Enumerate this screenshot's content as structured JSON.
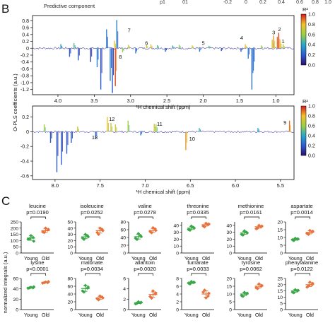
{
  "panel_labels": {
    "B": "B",
    "C": "C"
  },
  "header": {
    "component": "Predictive component",
    "cut_labels": [
      "p1",
      "01",
      "-0.2",
      "0",
      "0.2",
      "0.4",
      "0.6",
      "0.8",
      "1.0"
    ]
  },
  "colors": {
    "young": "#3aa647",
    "old": "#e8703a",
    "axis": "#000000"
  },
  "colorbar": {
    "title": "R²",
    "ticks": [
      "1.0",
      "0.8",
      "0.6",
      "0.4",
      "0.2",
      "0.0"
    ]
  },
  "chart_data": [
    {
      "type": "line",
      "name": "opls-aliphatic",
      "xlabel": "¹H chemical shift (ppm)",
      "ylabel": "O-PLS coefficients (a.u.)",
      "x_ticks": [
        "4.0",
        "3.5",
        "3.0",
        "2.5",
        "2.0",
        "1.5",
        "1.0"
      ],
      "y_ticks": [
        "0.8",
        "0.6",
        "0.4",
        "0.2",
        "0",
        "-0.2",
        "-0.4",
        "-0.6",
        "-0.8",
        "-1.0",
        "-1.2"
      ],
      "xlim": [
        4.35,
        0.75
      ],
      "ylim": [
        -1.35,
        0.95
      ],
      "x_reversed": true,
      "peaks": [
        {
          "x": 3.96,
          "y": 0.12,
          "r2": 0.4
        },
        {
          "x": 3.84,
          "y": -0.25,
          "r2": 0.2
        },
        {
          "x": 3.78,
          "y": 0.15,
          "r2": 0.5
        },
        {
          "x": 3.72,
          "y": -0.35,
          "r2": 0.2
        },
        {
          "x": 3.55,
          "y": -0.4,
          "r2": 0.15
        },
        {
          "x": 3.46,
          "y": -0.55,
          "r2": 0.3
        },
        {
          "x": 3.41,
          "y": -1.2,
          "r2": 0.2
        },
        {
          "x": 3.33,
          "y": 0.55,
          "r2": 0.3
        },
        {
          "x": 3.28,
          "y": -0.95,
          "r2": 0.3
        },
        {
          "x": 3.25,
          "y": -1.3,
          "r2": 0.2
        },
        {
          "x": 3.22,
          "y": 0.22,
          "r2": 0.8
        },
        {
          "x": 3.21,
          "y": -1.1,
          "r2": 0.95
        },
        {
          "x": 3.19,
          "y": 0.82,
          "r2": 0.3
        },
        {
          "x": 3.11,
          "y": -0.12,
          "r2": 0.6
        },
        {
          "x": 3.03,
          "y": 0.1,
          "r2": 0.75
        },
        {
          "x": 2.93,
          "y": -0.15,
          "r2": 0.3
        },
        {
          "x": 2.78,
          "y": 0.1,
          "r2": 0.7
        },
        {
          "x": 2.72,
          "y": 0.12,
          "r2": 0.8
        },
        {
          "x": 2.63,
          "y": 0.09,
          "r2": 0.5
        },
        {
          "x": 2.52,
          "y": -0.1,
          "r2": 0.2
        },
        {
          "x": 2.42,
          "y": 0.08,
          "r2": 0.45
        },
        {
          "x": 2.33,
          "y": 0.1,
          "r2": 0.6
        },
        {
          "x": 2.15,
          "y": 0.08,
          "r2": 0.75
        },
        {
          "x": 2.05,
          "y": -0.1,
          "r2": 0.3
        },
        {
          "x": 1.92,
          "y": 0.07,
          "r2": 0.5
        },
        {
          "x": 1.75,
          "y": -0.08,
          "r2": 0.2
        },
        {
          "x": 1.48,
          "y": -0.1,
          "r2": 0.2
        },
        {
          "x": 1.42,
          "y": 0.12,
          "r2": 0.8
        },
        {
          "x": 1.38,
          "y": -0.3,
          "r2": 0.3
        },
        {
          "x": 1.33,
          "y": -1.2,
          "r2": 0.25
        },
        {
          "x": 1.31,
          "y": -0.65,
          "r2": 0.3
        },
        {
          "x": 1.2,
          "y": 0.08,
          "r2": 0.6
        },
        {
          "x": 1.05,
          "y": 0.25,
          "r2": 0.7
        },
        {
          "x": 1.03,
          "y": 0.37,
          "r2": 0.85
        },
        {
          "x": 0.98,
          "y": 0.33,
          "r2": 0.9
        },
        {
          "x": 0.96,
          "y": 0.45,
          "r2": 0.95
        },
        {
          "x": 0.94,
          "y": 0.22,
          "r2": 0.8
        },
        {
          "x": 0.9,
          "y": 0.12,
          "r2": 0.7
        }
      ],
      "annotations": [
        {
          "text": "1",
          "x": 0.9,
          "y": 0.15
        },
        {
          "text": "2",
          "x": 0.95,
          "y": 0.5
        },
        {
          "text": "3",
          "x": 1.03,
          "y": 0.41
        },
        {
          "text": "4",
          "x": 1.47,
          "y": 0.25
        },
        {
          "text": "5",
          "x": 2.0,
          "y": 0.1
        },
        {
          "text": "6",
          "x": 2.78,
          "y": 0.1
        },
        {
          "text": "7",
          "x": 3.02,
          "y": 0.47
        },
        {
          "text": "8",
          "x": 3.14,
          "y": -0.3
        }
      ]
    },
    {
      "type": "line",
      "name": "opls-aromatic",
      "xlabel": "¹H chemical shift (ppm)",
      "ylabel": "",
      "x_ticks": [
        "8.0",
        "7.5",
        "7.0",
        "6.5",
        "6.0",
        "5.5"
      ],
      "y_ticks": [
        "0.2",
        "0",
        "-0.2",
        "-0.4",
        "-0.6"
      ],
      "xlim": [
        8.25,
        5.35
      ],
      "ylim": [
        -0.65,
        0.35
      ],
      "x_reversed": true,
      "peaks": [
        {
          "x": 8.12,
          "y": 0.1,
          "r2": 0.6
        },
        {
          "x": 8.05,
          "y": -0.15,
          "r2": 0.2
        },
        {
          "x": 7.98,
          "y": -0.55,
          "r2": 0.2
        },
        {
          "x": 7.93,
          "y": -0.45,
          "r2": 0.2
        },
        {
          "x": 7.87,
          "y": -0.3,
          "r2": 0.2
        },
        {
          "x": 7.82,
          "y": -0.15,
          "r2": 0.2
        },
        {
          "x": 7.75,
          "y": 0.07,
          "r2": 0.7
        },
        {
          "x": 7.55,
          "y": -0.1,
          "r2": 0.25
        },
        {
          "x": 7.42,
          "y": 0.2,
          "r2": 0.8
        },
        {
          "x": 7.38,
          "y": 0.12,
          "r2": 0.7
        },
        {
          "x": 7.33,
          "y": 0.1,
          "r2": 0.75
        },
        {
          "x": 7.19,
          "y": 0.15,
          "r2": 0.6
        },
        {
          "x": 7.05,
          "y": -0.05,
          "r2": 0.3
        },
        {
          "x": 6.9,
          "y": 0.11,
          "r2": 0.75
        },
        {
          "x": 6.88,
          "y": 0.1,
          "r2": 0.6
        },
        {
          "x": 6.55,
          "y": -0.25,
          "r2": 0.85
        },
        {
          "x": 6.4,
          "y": 0.05,
          "r2": 0.45
        },
        {
          "x": 5.75,
          "y": 0.05,
          "r2": 0.4
        },
        {
          "x": 5.4,
          "y": 0.15,
          "r2": 0.9
        }
      ],
      "annotations": [
        {
          "text": "9",
          "x": 5.45,
          "y": 0.1
        },
        {
          "text": "10",
          "x": 6.48,
          "y": -0.12
        },
        {
          "text": "11",
          "x": 6.84,
          "y": 0.08
        },
        {
          "text": "12",
          "x": 7.37,
          "y": 0.15
        },
        {
          "text": "13",
          "x": 7.56,
          "y": -0.1
        }
      ]
    },
    {
      "type": "scatter",
      "name": "normalized-integrals",
      "ylabel": "normalized integrals (a.u.)",
      "groups": [
        "Young",
        "Old"
      ],
      "panels": [
        {
          "title": "leucine",
          "p": "p=0.0190",
          "yticks": [
            "250",
            "200",
            "150",
            "100",
            "50",
            "0"
          ],
          "ylim": [
            0,
            250
          ],
          "young": [
            110,
            125,
            140,
            115,
            95
          ],
          "old": [
            170,
            185,
            200,
            165,
            190
          ],
          "young_mean": 120,
          "young_sd": 18,
          "old_mean": 180,
          "old_sd": 15
        },
        {
          "title": "isoleucine",
          "p": "p=0.0252",
          "yticks": [
            "50",
            "40",
            "30",
            "20",
            "10",
            "0"
          ],
          "ylim": [
            0,
            50
          ],
          "young": [
            24,
            28,
            30,
            22,
            26
          ],
          "old": [
            33,
            38,
            40,
            30,
            36
          ],
          "young_mean": 26,
          "young_sd": 3,
          "old_mean": 36,
          "old_sd": 4
        },
        {
          "title": "valine",
          "p": "p=0.0278",
          "yticks": [
            "80",
            "60",
            "40",
            "20",
            "0"
          ],
          "ylim": [
            0,
            80
          ],
          "young": [
            38,
            45,
            50,
            35,
            42
          ],
          "old": [
            55,
            62,
            65,
            52,
            58
          ],
          "young_mean": 42,
          "young_sd": 6,
          "old_mean": 58,
          "old_sd": 5
        },
        {
          "title": "threonine",
          "p": "p=0.0335",
          "yticks": [
            "40",
            "30",
            "20",
            "10",
            "0"
          ],
          "ylim": [
            0,
            45
          ],
          "young": [
            34,
            37,
            39,
            33,
            36
          ],
          "old": [
            39,
            41,
            43,
            38,
            42
          ],
          "young_mean": 36,
          "young_sd": 2,
          "old_mean": 41,
          "old_sd": 2
        },
        {
          "title": "methionine",
          "p": "p=0.0161",
          "yticks": [
            "40",
            "30",
            "20",
            "10",
            "0"
          ],
          "ylim": [
            0,
            45
          ],
          "young": [
            27,
            30,
            32,
            26,
            29
          ],
          "old": [
            35,
            38,
            40,
            36,
            39
          ],
          "young_mean": 29,
          "young_sd": 2,
          "old_mean": 38,
          "old_sd": 2
        },
        {
          "title": "aspartate",
          "p": "p=0.0014",
          "yticks": [
            "20",
            "15",
            "10",
            "5",
            "0"
          ],
          "ylim": [
            0,
            20
          ],
          "young": [
            8.5,
            9,
            9.5,
            8,
            9
          ],
          "old": [
            12.5,
            13.5,
            14.5,
            12,
            14
          ],
          "young_mean": 8.8,
          "young_sd": 0.6,
          "old_mean": 13.3,
          "old_sd": 1.0
        },
        {
          "title": "lysine",
          "p": "p<0.0001",
          "yticks": [
            "60",
            "40",
            "20",
            "0"
          ],
          "ylim": [
            0,
            60
          ],
          "young": [
            41,
            42,
            43,
            42,
            44
          ],
          "old": [
            51,
            52,
            53,
            52,
            54
          ],
          "young_mean": 42.5,
          "young_sd": 1.2,
          "old_mean": 52.5,
          "old_sd": 1.2
        },
        {
          "title": "malonate",
          "p": "p=0.0034",
          "yticks": [
            "80",
            "60",
            "40",
            "20",
            "0"
          ],
          "ylim": [
            0,
            80
          ],
          "young": [
            48,
            55,
            62,
            45,
            58
          ],
          "old": [
            28,
            32,
            35,
            25,
            30
          ],
          "young_mean": 54,
          "young_sd": 7,
          "old_mean": 30,
          "old_sd": 4
        },
        {
          "title": "allantoin",
          "p": "p=0.0020",
          "yticks": [
            "6",
            "4",
            "2",
            "0"
          ],
          "ylim": [
            0,
            6
          ],
          "young": [
            1.1,
            1.3,
            1.5,
            1.2,
            1.4
          ],
          "old": [
            2.5,
            3.0,
            3.6,
            2.2,
            3.2
          ],
          "young_mean": 1.3,
          "young_sd": 0.15,
          "old_mean": 2.9,
          "old_sd": 0.5
        },
        {
          "title": "fumarate",
          "p": "p=0.0033",
          "yticks": [
            "8",
            "6",
            "4",
            "2",
            "0"
          ],
          "ylim": [
            0,
            8
          ],
          "young": [
            6.8,
            7.0,
            7.2,
            6.6,
            7.0
          ],
          "old": [
            4.5,
            3.5,
            3.0,
            5.0,
            4.2
          ],
          "young_mean": 6.9,
          "young_sd": 0.2,
          "old_mean": 4.0,
          "old_sd": 0.8
        },
        {
          "title": "tyrosine",
          "p": "p=0.0062",
          "yticks": [
            "20",
            "15",
            "10",
            "5",
            "0"
          ],
          "ylim": [
            0,
            20
          ],
          "young": [
            9,
            10,
            11,
            8.5,
            10.5
          ],
          "old": [
            14,
            15,
            16.5,
            13.5,
            15.5
          ],
          "young_mean": 10,
          "young_sd": 1,
          "old_mean": 15,
          "old_sd": 1.2
        },
        {
          "title": "phenylalanine",
          "p": "p=0.0122",
          "yticks": [
            "25",
            "20",
            "15",
            "10",
            "5",
            "0"
          ],
          "ylim": [
            0,
            25
          ],
          "young": [
            14,
            15,
            16,
            13.5,
            15.5
          ],
          "old": [
            18,
            20,
            22,
            19,
            21
          ],
          "young_mean": 15,
          "young_sd": 1,
          "old_mean": 20,
          "old_sd": 1.5
        }
      ]
    }
  ]
}
